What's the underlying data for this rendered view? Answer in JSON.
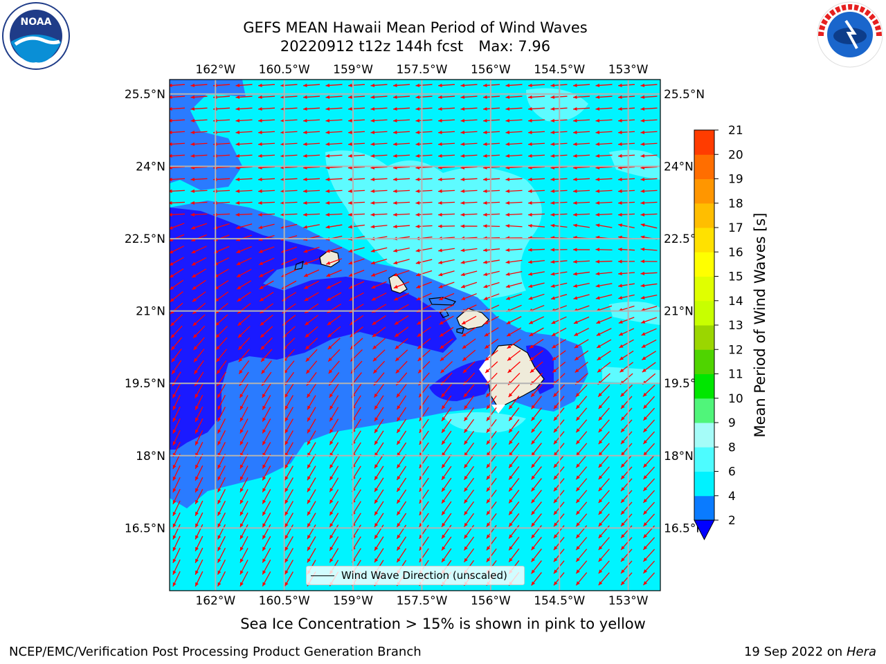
{
  "title": {
    "line1": "GEFS MEAN Hawaii Mean Period of Wind Waves",
    "line2_run": "20220912 t12z 144h fcst",
    "line2_max": "Max: 7.96"
  },
  "axes": {
    "lon_ticks": [
      "162°W",
      "160.5°W",
      "159°W",
      "157.5°W",
      "156°W",
      "154.5°W",
      "153°W"
    ],
    "lat_ticks": [
      "25.5°N",
      "24°N",
      "22.5°N",
      "21°N",
      "19.5°N",
      "18°N",
      "16.5°N"
    ],
    "lon_values": [
      -162,
      -160.5,
      -159,
      -157.5,
      -156,
      -154.5,
      -153
    ],
    "lat_values": [
      25.5,
      24,
      22.5,
      21,
      19.5,
      18,
      16.5
    ],
    "lon_range": [
      -163,
      -152.3
    ],
    "lat_range": [
      15.2,
      25.8
    ],
    "gridlines": true
  },
  "legend": {
    "label": "Wind Wave Direction (unscaled)",
    "placement": "lower-center"
  },
  "colorbar": {
    "label": "Mean Period of Wind Waves [s]",
    "tick_labels": [
      "2",
      "4",
      "6",
      "8",
      "9",
      "10",
      "11",
      "12",
      "13",
      "14",
      "15",
      "16",
      "17",
      "18",
      "19",
      "20",
      "21"
    ],
    "levels": [
      2,
      4,
      6,
      8,
      9,
      10,
      11,
      12,
      13,
      14,
      15,
      16,
      17,
      18,
      19,
      20,
      21
    ],
    "colors": [
      "#0a7bff",
      "#00f2ff",
      "#4dfcff",
      "#a5fcf8",
      "#50f57a",
      "#00e600",
      "#4fd400",
      "#9bd600",
      "#c8ff00",
      "#e0ff00",
      "#ffff00",
      "#ffe100",
      "#ffbe00",
      "#ff9600",
      "#ff6e00",
      "#ff3c00",
      "#ff0000"
    ],
    "under_color": "#0000ff",
    "extend": "min"
  },
  "map_colors": {
    "deep_blue": "#1a1aff",
    "mid_blue": "#2a7bff",
    "cyan": "#00f4ff",
    "light_cyan": "#6ffcff",
    "land": "#efebda",
    "arrow": "#ff0000",
    "grid": "#b3b3b3"
  },
  "note": "Sea Ice Concentration > 15% is shown in pink to yellow",
  "footer": {
    "left": "NCEP/EMC/Verification Post Processing Product Generation Branch",
    "right_date": "19 Sep 2022 on",
    "right_host": "Hera"
  },
  "logos": {
    "left": "noaa-logo",
    "right": "national-weather-service-logo"
  }
}
